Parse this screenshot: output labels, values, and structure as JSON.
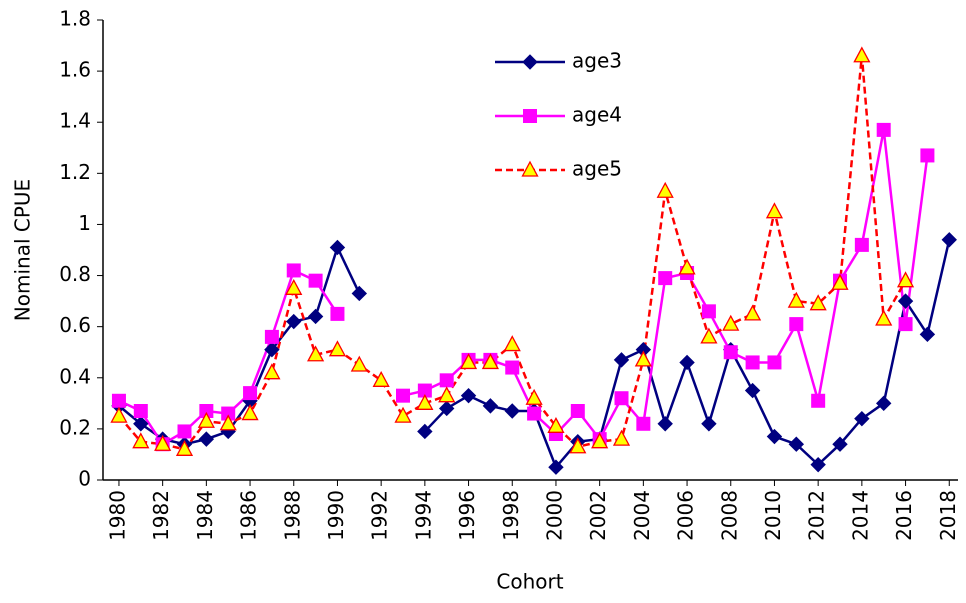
{
  "chart_data": {
    "type": "line",
    "x_label": "Cohort",
    "y_label": "Nominal CPUE",
    "x": [
      1980,
      1981,
      1982,
      1983,
      1984,
      1985,
      1986,
      1987,
      1988,
      1989,
      1990,
      1991,
      1992,
      1993,
      1994,
      1995,
      1996,
      1997,
      1998,
      1999,
      2000,
      2001,
      2002,
      2003,
      2004,
      2005,
      2006,
      2007,
      2008,
      2009,
      2010,
      2011,
      2012,
      2013,
      2014,
      2015,
      2016,
      2017,
      2018
    ],
    "series": [
      {
        "name": "age3",
        "color": "#000080",
        "marker": "diamond",
        "dash": false,
        "values": [
          0.29,
          0.22,
          0.16,
          0.14,
          0.16,
          0.19,
          0.31,
          0.51,
          0.62,
          0.64,
          0.91,
          0.73,
          null,
          null,
          0.19,
          0.28,
          0.33,
          0.29,
          0.27,
          0.27,
          0.05,
          0.15,
          0.16,
          0.47,
          0.51,
          0.22,
          0.46,
          0.22,
          0.51,
          0.35,
          0.17,
          0.14,
          0.06,
          0.14,
          0.24,
          0.3,
          0.7,
          0.57,
          0.94
        ]
      },
      {
        "name": "age4",
        "color": "#ff00ff",
        "marker": "square",
        "dash": false,
        "values": [
          0.31,
          0.27,
          0.14,
          0.19,
          0.27,
          0.26,
          0.34,
          0.56,
          0.82,
          0.78,
          0.65,
          null,
          null,
          0.33,
          0.35,
          0.39,
          0.47,
          0.47,
          0.44,
          0.26,
          0.18,
          0.27,
          0.16,
          0.32,
          0.22,
          0.79,
          0.81,
          0.66,
          0.5,
          0.46,
          0.46,
          0.61,
          0.31,
          0.78,
          0.92,
          1.37,
          0.61,
          1.27,
          null
        ]
      },
      {
        "name": "age5",
        "color": "#ff0000",
        "marker_fill": "#ffff00",
        "marker": "triangle",
        "dash": true,
        "values": [
          0.25,
          0.15,
          0.14,
          0.12,
          0.23,
          0.22,
          0.26,
          0.42,
          0.75,
          0.49,
          0.51,
          0.45,
          0.39,
          0.25,
          0.3,
          0.33,
          0.46,
          0.46,
          0.53,
          0.32,
          0.21,
          0.13,
          0.15,
          0.16,
          0.47,
          1.13,
          0.83,
          0.56,
          0.61,
          0.65,
          1.05,
          0.7,
          0.69,
          0.77,
          1.66,
          0.63,
          0.78,
          null,
          null
        ]
      }
    ],
    "xlim": [
      1979.27,
      2018.4
    ],
    "xticks": [
      1980,
      1982,
      1984,
      1986,
      1988,
      1990,
      1992,
      1994,
      1996,
      1998,
      2000,
      2002,
      2004,
      2006,
      2008,
      2010,
      2012,
      2014,
      2016,
      2018
    ],
    "ylim": [
      0,
      1.8
    ],
    "yticks": [
      0,
      0.2,
      0.4,
      0.6,
      0.8,
      1,
      1.2,
      1.4,
      1.6,
      1.8
    ],
    "grid": false,
    "legend": "top"
  }
}
